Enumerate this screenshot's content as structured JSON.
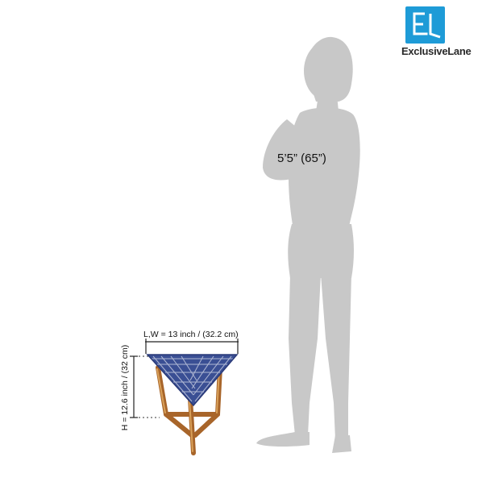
{
  "brand": {
    "name": "ExclusiveLane",
    "logo_color": "#1e9bd7",
    "logo_icon": "el-monogram-icon"
  },
  "figure": {
    "height_label": "5’5” (65”)",
    "color": "#c8c8c8"
  },
  "product": {
    "width_label": "L,W = 13 inch / (32.2 cm)",
    "height_label": "H = 12.6 inch / (32 cm)",
    "top_color": "#3a4f94",
    "wood_color": "#c98a3c"
  }
}
